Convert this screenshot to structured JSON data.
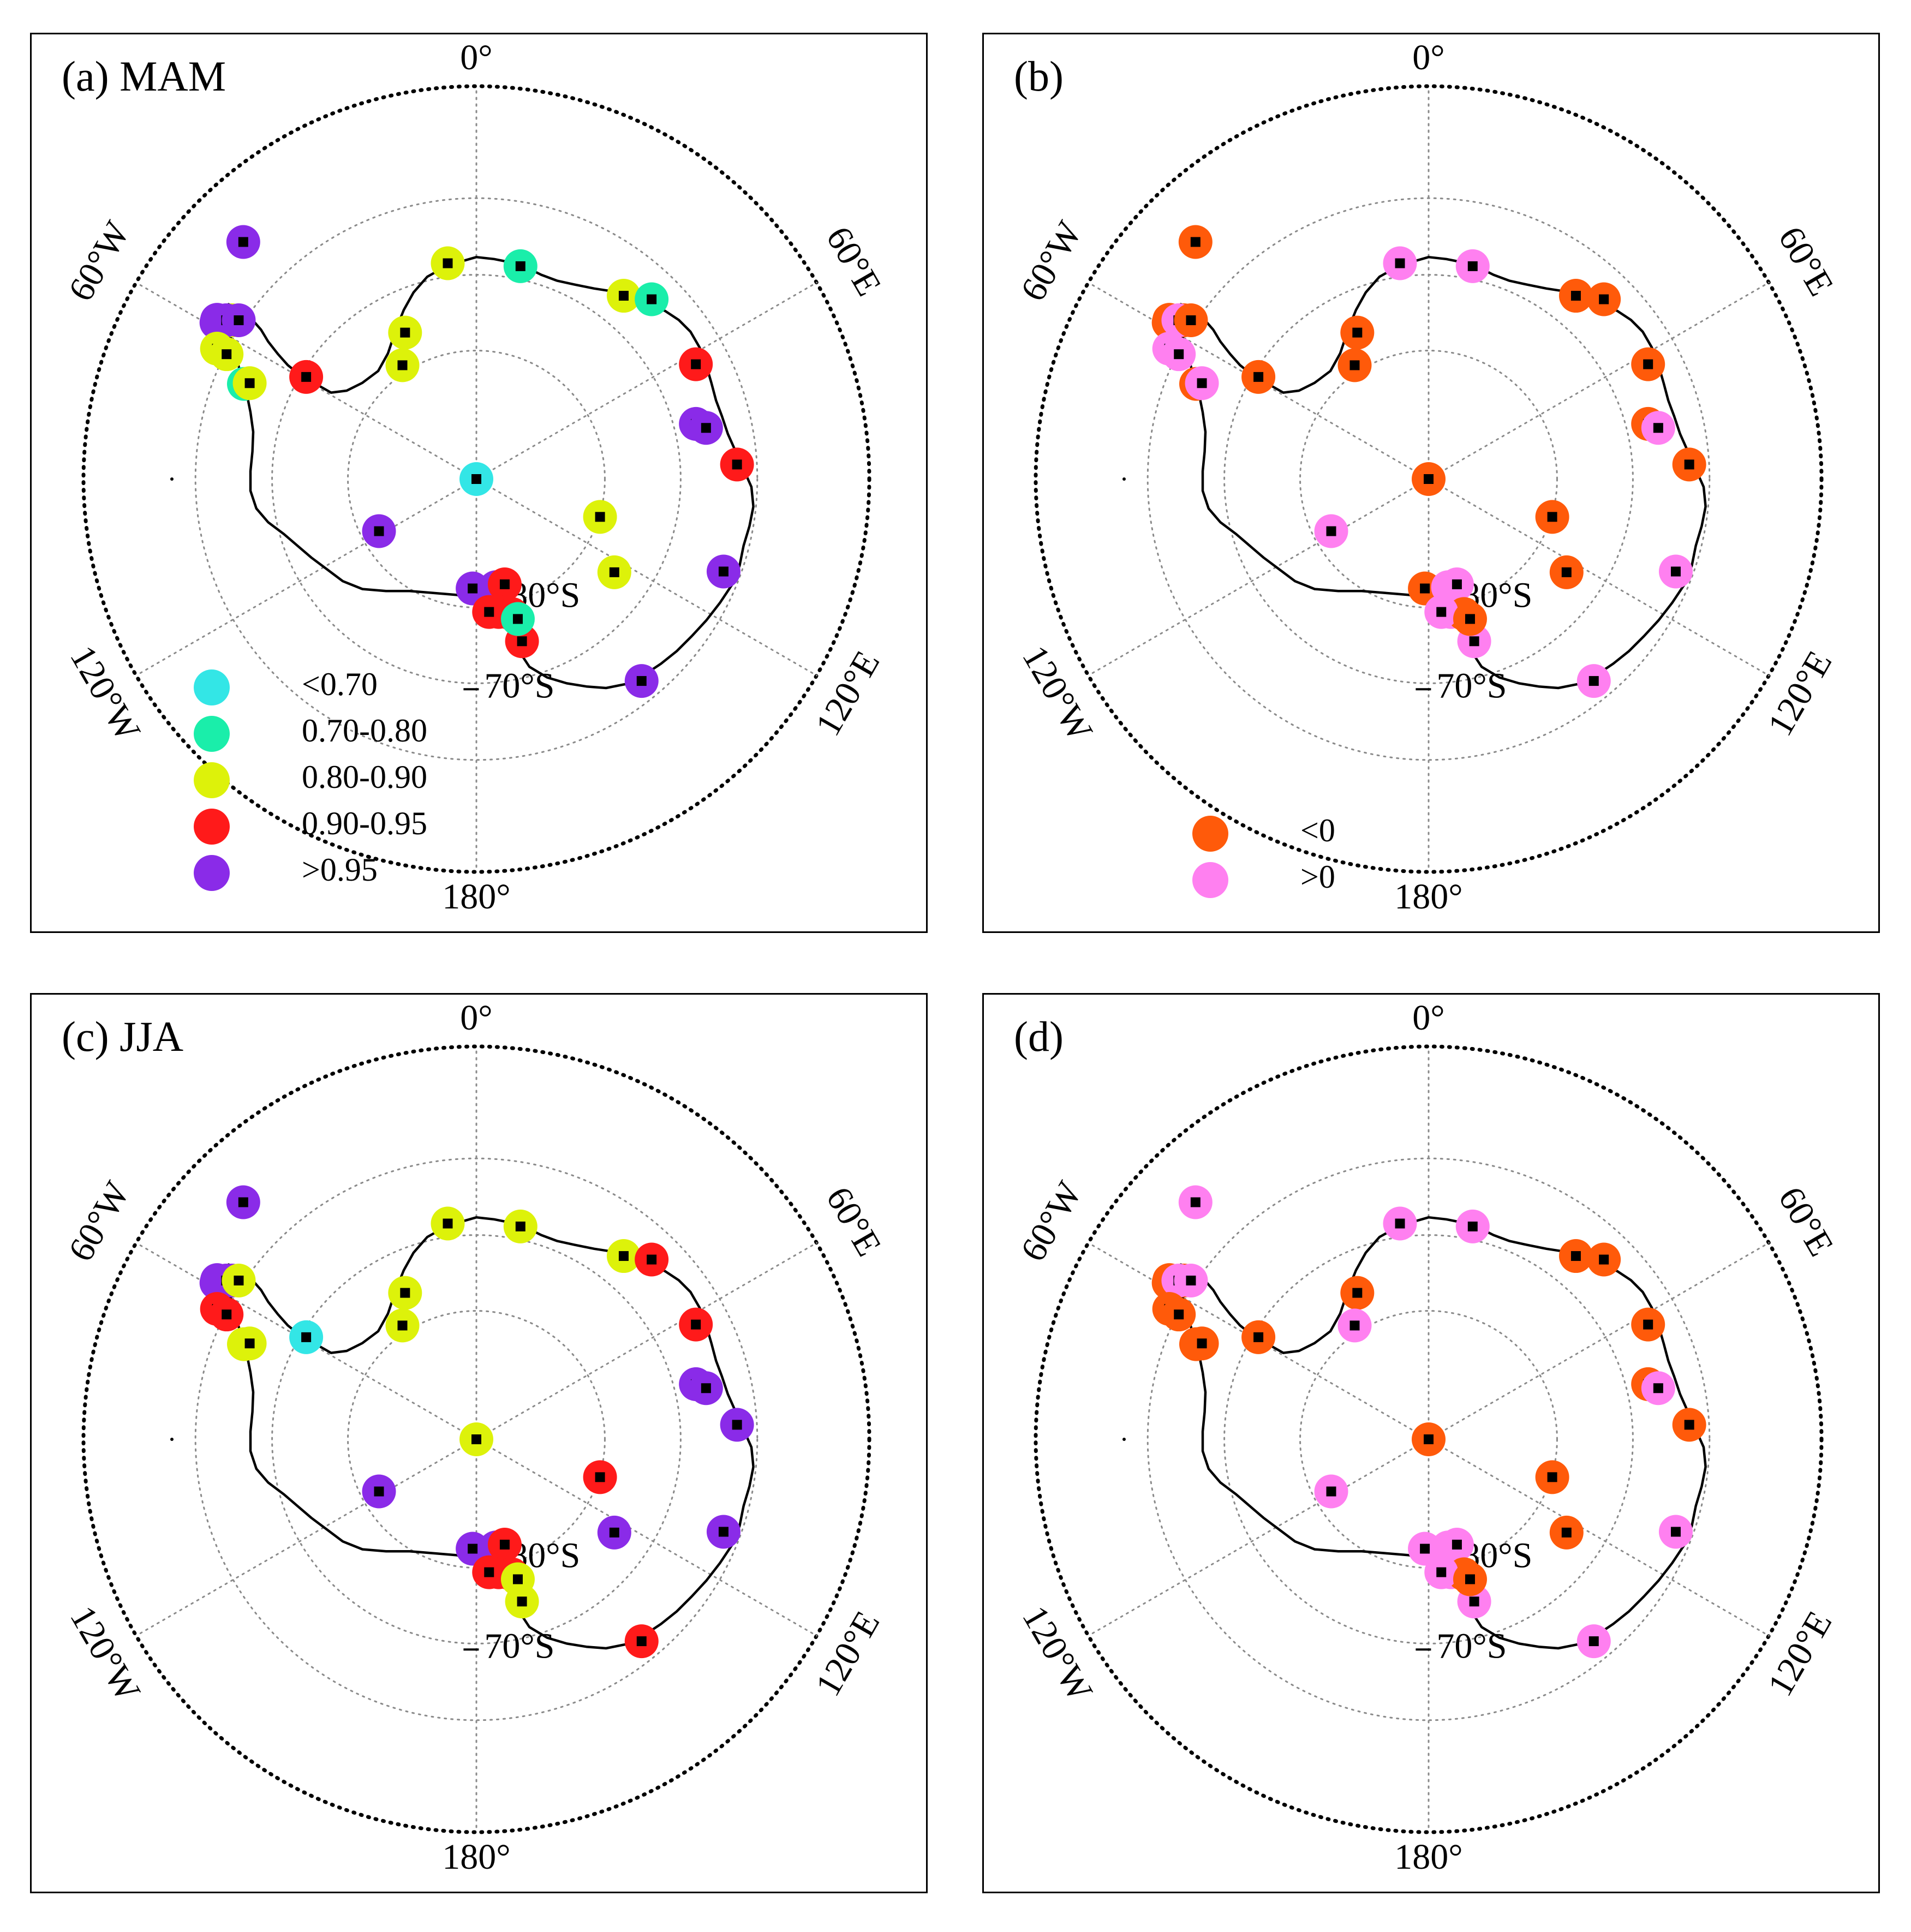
{
  "panels": [
    {
      "id": "a",
      "label": "(a) MAM",
      "scheme": "corr",
      "legend": "corr_legend"
    },
    {
      "id": "b",
      "label": "(b)",
      "scheme": "sign",
      "legend": "sign_legend"
    },
    {
      "id": "c",
      "label": "(c) JJA",
      "scheme": "corr",
      "legend": null
    },
    {
      "id": "d",
      "label": "(d)",
      "scheme": "sign",
      "legend": null
    }
  ],
  "map_labels": {
    "lon_0": "0°",
    "lon_60E": "60°E",
    "lon_120E": "120°E",
    "lon_180": "180°",
    "lon_120W": "120°W",
    "lon_60W": "60°W",
    "lat_80S": "80°S",
    "lat_70S": "70°S"
  },
  "corr_legend": [
    {
      "label": "<0.70",
      "color": "#33e6e6"
    },
    {
      "label": "0.70-0.80",
      "color": "#1aeeaa"
    },
    {
      "label": "0.80-0.90",
      "color": "#ddf20a"
    },
    {
      "label": "0.90-0.95",
      "color": "#ff1a1a"
    },
    {
      "label": ">0.95",
      "color": "#8a2be8"
    }
  ],
  "sign_legend": [
    {
      "label": "<0",
      "color": "#ff5a0a"
    },
    {
      "label": ">0",
      "color": "#ff80f0"
    }
  ],
  "stations": [
    {
      "rel": [
        -0.5933,
        -0.6035
      ],
      "a": 4,
      "b": 0,
      "c": 4,
      "d": 1
    },
    {
      "rel": [
        -0.0729,
        -0.5493
      ],
      "a": 2,
      "b": 1,
      "c": 2,
      "d": 1
    },
    {
      "rel": [
        0.1122,
        -0.5418
      ],
      "a": 1,
      "b": 1,
      "c": 2,
      "d": 1
    },
    {
      "rel": [
        0.3749,
        -0.4666
      ],
      "a": 2,
      "b": 0,
      "c": 2,
      "d": 0
    },
    {
      "rel": [
        0.446,
        -0.4576
      ],
      "a": 1,
      "b": 0,
      "c": 3,
      "d": 0
    },
    {
      "rel": [
        -0.1815,
        -0.3728
      ],
      "a": 2,
      "b": 0,
      "c": 2,
      "d": 0
    },
    {
      "rel": [
        -0.1882,
        -0.2897
      ],
      "a": 2,
      "b": 0,
      "c": 2,
      "d": 1
    },
    {
      "rel": [
        -0.4332,
        -0.2599
      ],
      "a": 3,
      "b": 0,
      "c": 0,
      "d": 0
    },
    {
      "rel": [
        0.5586,
        -0.2922
      ],
      "a": 3,
      "b": 0,
      "c": 3,
      "d": 0
    },
    {
      "rel": [
        0.5586,
        -0.1404
      ],
      "a": 4,
      "b": 0,
      "c": 4,
      "d": 0
    },
    {
      "rel": [
        0.5845,
        -0.1302
      ],
      "a": 4,
      "b": 1,
      "c": 4,
      "d": 1
    },
    {
      "rel": [
        0.6634,
        -0.037
      ],
      "a": 3,
      "b": 0,
      "c": 4,
      "d": 0
    },
    {
      "rel": [
        0.6291,
        0.2354
      ],
      "a": 4,
      "b": 1,
      "c": 4,
      "d": 1
    },
    {
      "rel": [
        0.3147,
        0.0963
      ],
      "a": 2,
      "b": 0,
      "c": 3,
      "d": 0
    },
    {
      "rel": [
        0.3511,
        0.2373
      ],
      "a": 2,
      "b": 0,
      "c": 4,
      "d": 0
    },
    {
      "rel": [
        -0.2479,
        0.1327
      ],
      "a": 4,
      "b": 1,
      "c": 4,
      "d": 1
    },
    {
      "rel": [
        0.0,
        0.0
      ],
      "a": 0,
      "b": 0,
      "c": 2,
      "d": 0
    },
    {
      "rel": [
        0.4205,
        0.514
      ],
      "a": 4,
      "b": 1,
      "c": 3,
      "d": 1
    },
    {
      "rel": [
        0.1161,
        0.4129
      ],
      "a": 3,
      "b": 1,
      "c": 2,
      "d": 1
    },
    {
      "rel": [
        -0.0096,
        0.2785
      ],
      "a": 4,
      "b": 0,
      "c": 4,
      "d": 1
    },
    {
      "rel": [
        0.0494,
        0.2753
      ],
      "a": 4,
      "b": 1,
      "c": 4,
      "d": 1
    },
    {
      "rel": [
        0.0721,
        0.268
      ],
      "a": 3,
      "b": 1,
      "c": 3,
      "d": 1
    },
    {
      "rel": [
        0.0568,
        0.3383
      ],
      "a": 3,
      "b": 1,
      "c": 3,
      "d": 1
    },
    {
      "rel": [
        0.0901,
        0.3435
      ],
      "a": 3,
      "b": 0,
      "c": 3,
      "d": 0
    },
    {
      "rel": [
        0.0323,
        0.3383
      ],
      "a": 3,
      "b": 1,
      "c": 3,
      "d": 1
    },
    {
      "rel": [
        0.1055,
        0.3562
      ],
      "a": 1,
      "b": 0,
      "c": 2,
      "d": 0
    },
    {
      "rel": [
        -0.6599,
        -0.4053
      ],
      "a": 4,
      "b": 0,
      "c": 4,
      "d": 0
    },
    {
      "rel": [
        -0.6616,
        -0.3982
      ],
      "a": 4,
      "b": 0,
      "c": 4,
      "d": 0
    },
    {
      "rel": [
        -0.6224,
        -0.4042
      ],
      "a": 2,
      "b": 0,
      "c": 4,
      "d": 0
    },
    {
      "rel": [
        -0.6369,
        -0.4042
      ],
      "a": 4,
      "b": 1,
      "c": 4,
      "d": 1
    },
    {
      "rel": [
        -0.6049,
        -0.4042
      ],
      "a": 4,
      "b": 0,
      "c": 2,
      "d": 1
    },
    {
      "rel": [
        -0.6602,
        -0.3319
      ],
      "a": 2,
      "b": 1,
      "c": 3,
      "d": 0
    },
    {
      "rel": [
        -0.6358,
        -0.3178
      ],
      "a": 2,
      "b": 1,
      "c": 3,
      "d": 0
    },
    {
      "rel": [
        -0.5917,
        -0.2422
      ],
      "a": 1,
      "b": 0,
      "c": 2,
      "d": 0
    },
    {
      "rel": [
        -0.577,
        -0.2441
      ],
      "a": 2,
      "b": 1,
      "c": 2,
      "d": 0
    }
  ]
}
